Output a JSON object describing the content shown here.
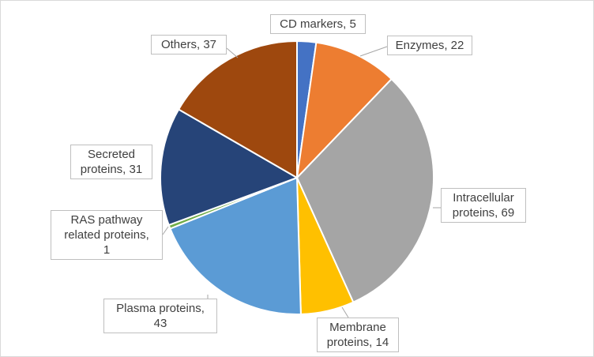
{
  "chart_data": {
    "type": "pie",
    "title": "",
    "slices": [
      {
        "label": "CD markers",
        "value": 5,
        "color": "#4472c4",
        "display": "CD markers, 5"
      },
      {
        "label": "Enzymes",
        "value": 22,
        "color": "#ed7d31",
        "display": "Enzymes, 22"
      },
      {
        "label": "Intracellular proteins",
        "value": 69,
        "color": "#a5a5a5",
        "display_lines": [
          "Intracellular",
          "proteins, 69"
        ]
      },
      {
        "label": "Membrane proteins",
        "value": 14,
        "color": "#ffc000",
        "display_lines": [
          "Membrane",
          "proteins, 14"
        ]
      },
      {
        "label": "Plasma proteins",
        "value": 43,
        "color": "#5b9bd5",
        "display_lines": [
          "Plasma proteins,",
          "43"
        ]
      },
      {
        "label": "RAS pathway related proteins",
        "value": 1,
        "color": "#70ad47",
        "display_lines": [
          "RAS pathway",
          "related proteins,",
          "1"
        ]
      },
      {
        "label": "Secreted proteins",
        "value": 31,
        "color": "#264478",
        "display_lines": [
          "Secreted",
          "proteins, 31"
        ]
      },
      {
        "label": "Others",
        "value": 37,
        "color": "#9e480e",
        "display": "Others, 37"
      }
    ]
  }
}
